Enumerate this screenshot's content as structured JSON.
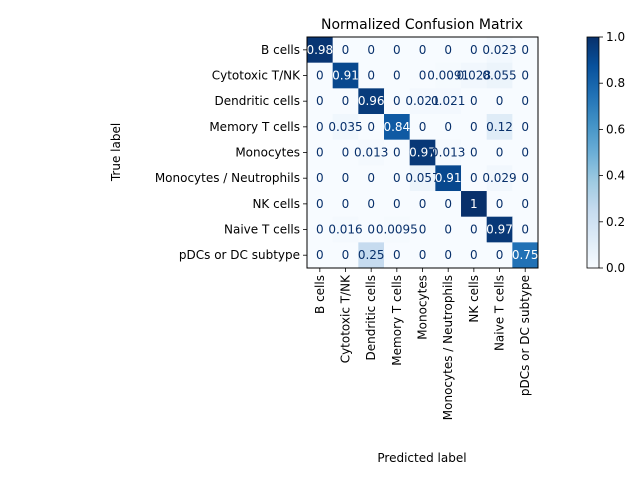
{
  "chart_data": {
    "type": "heatmap",
    "title": "Normalized Confusion Matrix",
    "xlabel": "Predicted label",
    "ylabel": "True label",
    "x_categories": [
      "B cells",
      "Cytotoxic T/NK",
      "Dendritic cells",
      "Memory T cells",
      "Monocytes",
      "Monocytes / Neutrophils",
      "NK cells",
      "Naive T cells",
      "pDCs or DC subtype"
    ],
    "y_categories": [
      "B cells",
      "Cytotoxic T/NK",
      "Dendritic cells",
      "Memory T cells",
      "Monocytes",
      "Monocytes / Neutrophils",
      "NK cells",
      "Naive T cells",
      "pDCs or DC subtype"
    ],
    "values": [
      [
        0.98,
        0,
        0,
        0,
        0,
        0,
        0,
        0.023,
        0
      ],
      [
        0,
        0.91,
        0,
        0,
        0,
        0.0091,
        0.028,
        0.055,
        0
      ],
      [
        0,
        0,
        0.96,
        0,
        0.021,
        0.021,
        0,
        0,
        0
      ],
      [
        0,
        0.035,
        0,
        0.84,
        0,
        0,
        0,
        0.12,
        0
      ],
      [
        0,
        0,
        0.013,
        0,
        0.97,
        0.013,
        0,
        0,
        0
      ],
      [
        0,
        0,
        0,
        0,
        0.057,
        0.91,
        0,
        0.029,
        0
      ],
      [
        0,
        0,
        0,
        0,
        0,
        0,
        1,
        0,
        0
      ],
      [
        0,
        0.016,
        0,
        0.0095,
        0,
        0,
        0,
        0.97,
        0
      ],
      [
        0,
        0,
        0.25,
        0,
        0,
        0,
        0,
        0,
        0.75
      ]
    ],
    "cell_labels": [
      [
        "0.98",
        "0",
        "0",
        "0",
        "0",
        "0",
        "0",
        "0.023",
        "0"
      ],
      [
        "0",
        "0.91",
        "0",
        "0",
        "0",
        "0.0091",
        "0.028",
        "0.055",
        "0"
      ],
      [
        "0",
        "0",
        "0.96",
        "0",
        "0.021",
        "0.021",
        "0",
        "0",
        "0"
      ],
      [
        "0",
        "0.035",
        "0",
        "0.84",
        "0",
        "0",
        "0",
        "0.12",
        "0"
      ],
      [
        "0",
        "0",
        "0.013",
        "0",
        "0.97",
        "0.013",
        "0",
        "0",
        "0"
      ],
      [
        "0",
        "0",
        "0",
        "0",
        "0.057",
        "0.91",
        "0",
        "0.029",
        "0"
      ],
      [
        "0",
        "0",
        "0",
        "0",
        "0",
        "0",
        "1",
        "0",
        "0"
      ],
      [
        "0",
        "0.016",
        "0",
        "0.0095",
        "0",
        "0",
        "0",
        "0.97",
        "0"
      ],
      [
        "0",
        "0",
        "0.25",
        "0",
        "0",
        "0",
        "0",
        "0",
        "0.75"
      ]
    ],
    "colormap": "Blues",
    "color_range": [
      0.0,
      1.0
    ],
    "colorbar_ticks": [
      "0.0",
      "0.2",
      "0.4",
      "0.6",
      "0.8",
      "1.0"
    ],
    "grid": false
  }
}
